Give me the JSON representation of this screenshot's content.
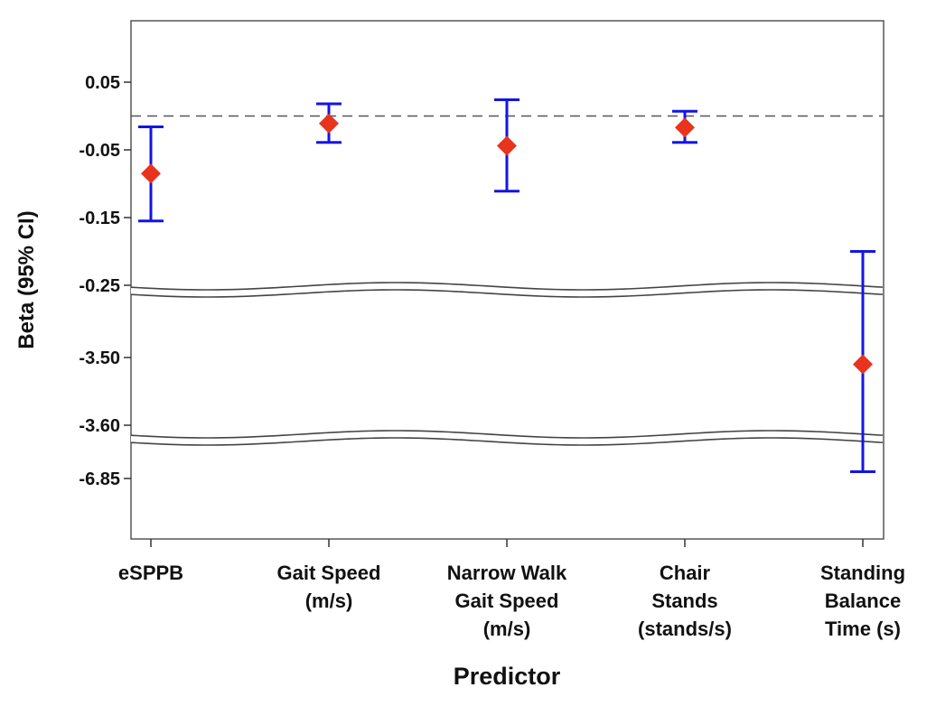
{
  "chart_data": {
    "type": "scatter",
    "subtype": "forest-plot-with-broken-axis",
    "title": "",
    "xlabel": "Predictor",
    "ylabel": "Beta (95% CI)",
    "reference_line": {
      "y": 0,
      "style": "dashed"
    },
    "y_tick_labels": [
      "0.05",
      "-0.05",
      "-0.15",
      "-0.25",
      "-3.50",
      "-3.60",
      "-6.85"
    ],
    "y_segments": [
      {
        "range": [
          -0.25,
          0.1
        ],
        "ticks": [
          0.05,
          -0.05,
          -0.15,
          -0.25
        ]
      },
      {
        "range": [
          -3.62,
          -3.4
        ],
        "ticks": [
          -3.5,
          -3.6
        ]
      },
      {
        "range": [
          -7.2,
          -6.75
        ],
        "ticks": [
          -6.85
        ]
      }
    ],
    "categories": [
      [
        "eSPPB"
      ],
      [
        "Gait Speed",
        "(m/s)"
      ],
      [
        "Narrow Walk",
        "Gait Speed",
        "(m/s)"
      ],
      [
        "Chair",
        "Stands",
        "(stands/s)"
      ],
      [
        "Standing",
        "Balance",
        "Time (s)"
      ]
    ],
    "points": [
      {
        "estimate": -0.085,
        "lower": -0.155,
        "upper": -0.016
      },
      {
        "estimate": -0.011,
        "lower": -0.039,
        "upper": 0.018
      },
      {
        "estimate": -0.044,
        "lower": -0.111,
        "upper": 0.024
      },
      {
        "estimate": -0.017,
        "lower": -0.039,
        "upper": 0.007
      },
      {
        "estimate": -3.51,
        "lower": -6.82,
        "upper": -0.2
      }
    ],
    "colors": {
      "point": "#e8341c",
      "ci": "#1414e6",
      "reference": "#555555"
    },
    "grid": false,
    "legend": "none"
  }
}
